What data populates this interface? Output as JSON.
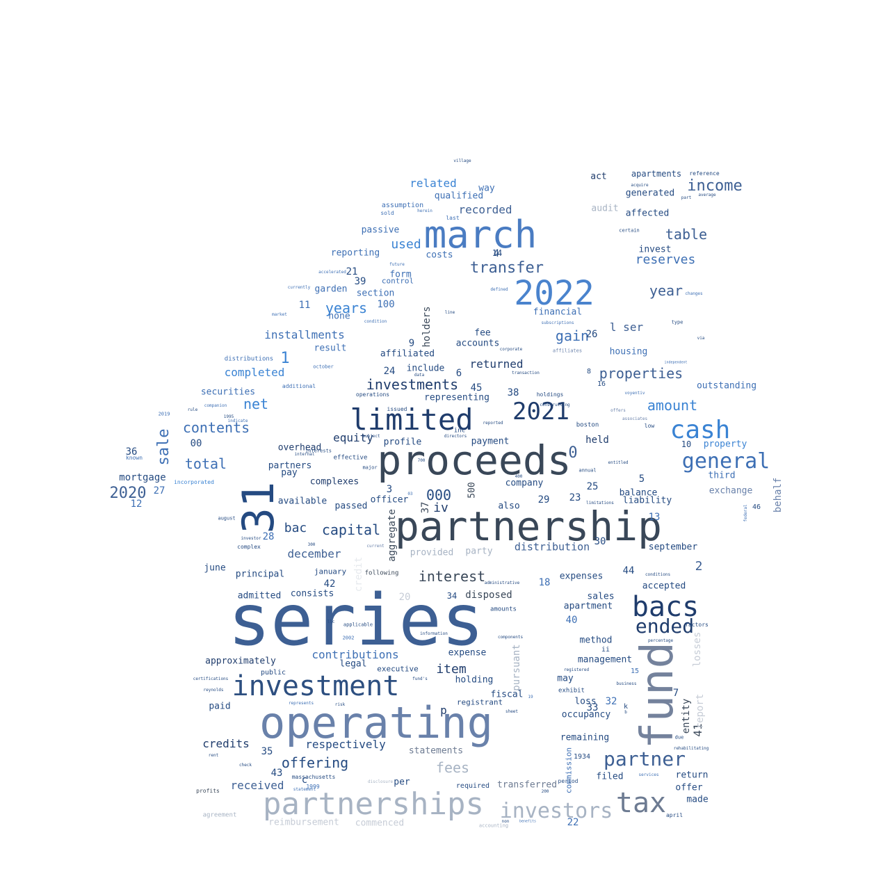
{
  "words": [
    {
      "text": "series",
      "color": "#3d5f93"
    },
    {
      "text": "partnership",
      "color": "#394758"
    },
    {
      "text": "proceeds",
      "color": "#394758"
    },
    {
      "text": "operating",
      "color": "#6981aa"
    },
    {
      "text": "31",
      "color": "#244a81"
    },
    {
      "text": "march",
      "color": "#4a7cc2"
    },
    {
      "text": "partnerships",
      "color": "#a7b3c3"
    },
    {
      "text": "fund",
      "color": "#74829c"
    },
    {
      "text": "limited",
      "color": "#1f3c6c"
    },
    {
      "text": "investment",
      "color": "#2d4f80"
    },
    {
      "text": "2022",
      "color": "#4a83cd"
    },
    {
      "text": "cash",
      "color": "#3a83d3"
    },
    {
      "text": "bacs",
      "color": "#1f3c6c"
    },
    {
      "text": "tax",
      "color": "#6d7b92"
    },
    {
      "text": "2021",
      "color": "#1f3c6c"
    },
    {
      "text": "investors",
      "color": "#a7b3c3"
    },
    {
      "text": "partner",
      "color": "#3d5f93"
    },
    {
      "text": "general",
      "color": "#3d6fb4"
    },
    {
      "text": "ended",
      "color": "#1f3c6c"
    },
    {
      "text": "income",
      "color": "#3d5f93"
    },
    {
      "text": "sale",
      "color": "#3d6fb4"
    },
    {
      "text": "2020",
      "color": "#3d5f93"
    },
    {
      "text": "transfer",
      "color": "#3d5f93"
    },
    {
      "text": "interest",
      "color": "#394758"
    },
    {
      "text": "capital",
      "color": "#244a81"
    },
    {
      "text": "investments",
      "color": "#1f3c6c"
    },
    {
      "text": "properties",
      "color": "#3d5f93"
    },
    {
      "text": "offering",
      "color": "#244a81"
    },
    {
      "text": "years",
      "color": "#3a83d3"
    },
    {
      "text": "net",
      "color": "#3a83d3"
    },
    {
      "text": "table",
      "color": "#3d5f93"
    },
    {
      "text": "amount",
      "color": "#3a83d3"
    },
    {
      "text": "fees",
      "color": "#a7b3c3"
    },
    {
      "text": "gain",
      "color": "#3d6fb4"
    },
    {
      "text": "contents",
      "color": "#3d6fb4"
    },
    {
      "text": "total",
      "color": "#3d6fb4"
    },
    {
      "text": "year",
      "color": "#3d5f93"
    },
    {
      "text": "reserves",
      "color": "#3d6fb4"
    },
    {
      "text": "used",
      "color": "#3a83d3"
    },
    {
      "text": "recorded",
      "color": "#3d5f93"
    },
    {
      "text": "completed",
      "color": "#3a83d3"
    },
    {
      "text": "installments",
      "color": "#3d6fb4"
    },
    {
      "text": "related",
      "color": "#3a83d3"
    },
    {
      "text": "1",
      "color": "#3a83d3"
    },
    {
      "text": "000",
      "color": "#244a81"
    },
    {
      "text": "bac",
      "color": "#244a81"
    },
    {
      "text": "december",
      "color": "#3d5f93"
    },
    {
      "text": "received",
      "color": "#3d5f93"
    },
    {
      "text": "credits",
      "color": "#1f3c6c"
    },
    {
      "text": "returned",
      "color": "#1f3c6c"
    },
    {
      "text": "respectively",
      "color": "#244a81"
    },
    {
      "text": "contributions",
      "color": "#3d6fb4"
    },
    {
      "text": "item",
      "color": "#1f3c6c"
    },
    {
      "text": "disposed",
      "color": "#394758"
    },
    {
      "text": "equity",
      "color": "#1f3c6c"
    },
    {
      "text": "2",
      "color": "#3d5f93"
    },
    {
      "text": "0",
      "color": "#3d5f93"
    },
    {
      "text": "41",
      "color": "#394758"
    },
    {
      "text": "l ser",
      "color": "#3d5f93"
    },
    {
      "text": "distribution",
      "color": "#3d5f93"
    },
    {
      "text": "holders",
      "color": "#394758"
    },
    {
      "text": "aggregate",
      "color": "#394758"
    },
    {
      "text": "credit",
      "color": "#e6e9ed"
    },
    {
      "text": "losses",
      "color": "#c6ccd6"
    },
    {
      "text": "report",
      "color": "#c6ccd6"
    },
    {
      "text": "pursuant",
      "color": "#a7b3c3"
    },
    {
      "text": "behalf",
      "color": "#6981aa"
    },
    {
      "text": "entity",
      "color": "#394758"
    },
    {
      "text": "commission",
      "color": "#3d6fb4"
    },
    {
      "text": "500",
      "color": "#394758"
    },
    {
      "text": "37",
      "color": "#394758"
    },
    {
      "text": "iv",
      "color": "#1f3c6c"
    },
    {
      "text": "p",
      "color": "#1f3c6c"
    },
    {
      "text": "held",
      "color": "#1f3c6c"
    },
    {
      "text": "mortgage",
      "color": "#244a81"
    },
    {
      "text": "securities",
      "color": "#3d6fb4"
    },
    {
      "text": "complexes",
      "color": "#1f3c6c"
    },
    {
      "text": "overhead",
      "color": "#1f3c6c"
    },
    {
      "text": "approximately",
      "color": "#1f3c6c"
    },
    {
      "text": "principal",
      "color": "#244a81"
    },
    {
      "text": "reimbursement",
      "color": "#c6ccd6"
    },
    {
      "text": "commenced",
      "color": "#c6ccd6"
    },
    {
      "text": "statements",
      "color": "#6d7b92"
    },
    {
      "text": "transferred",
      "color": "#6d7b92"
    },
    {
      "text": "exchange",
      "color": "#6981aa"
    },
    {
      "text": "outstanding",
      "color": "#3d6fb4"
    },
    {
      "text": "housing",
      "color": "#3d6fb4"
    },
    {
      "text": "financial",
      "color": "#3d6fb4"
    },
    {
      "text": "property",
      "color": "#3a83d3"
    },
    {
      "text": "third",
      "color": "#3d6fb4"
    },
    {
      "text": "liability",
      "color": "#244a81"
    },
    {
      "text": "balance",
      "color": "#244a81"
    },
    {
      "text": "september",
      "color": "#244a81"
    },
    {
      "text": "expenses",
      "color": "#244a81"
    },
    {
      "text": "accepted",
      "color": "#244a81"
    },
    {
      "text": "sales",
      "color": "#244a81"
    },
    {
      "text": "apartment",
      "color": "#244a81"
    },
    {
      "text": "method",
      "color": "#244a81"
    },
    {
      "text": "management",
      "color": "#244a81"
    },
    {
      "text": "remaining",
      "color": "#244a81"
    },
    {
      "text": "occupancy",
      "color": "#244a81"
    },
    {
      "text": "loss",
      "color": "#244a81"
    },
    {
      "text": "filed",
      "color": "#244a81"
    },
    {
      "text": "return",
      "color": "#244a81"
    },
    {
      "text": "offer",
      "color": "#244a81"
    },
    {
      "text": "made",
      "color": "#244a81"
    },
    {
      "text": "expense",
      "color": "#244a81"
    },
    {
      "text": "holding",
      "color": "#244a81"
    },
    {
      "text": "fiscal",
      "color": "#244a81"
    },
    {
      "text": "registrant",
      "color": "#244a81"
    },
    {
      "text": "legal",
      "color": "#244a81"
    },
    {
      "text": "executive",
      "color": "#244a81"
    },
    {
      "text": "paid",
      "color": "#244a81"
    },
    {
      "text": "public",
      "color": "#244a81"
    },
    {
      "text": "per",
      "color": "#244a81"
    },
    {
      "text": "required",
      "color": "#244a81"
    },
    {
      "text": "admitted",
      "color": "#244a81"
    },
    {
      "text": "consists",
      "color": "#244a81"
    },
    {
      "text": "january",
      "color": "#244a81"
    },
    {
      "text": "june",
      "color": "#244a81"
    },
    {
      "text": "available",
      "color": "#244a81"
    },
    {
      "text": "passed",
      "color": "#244a81"
    },
    {
      "text": "officer",
      "color": "#244a81"
    },
    {
      "text": "partners",
      "color": "#244a81"
    },
    {
      "text": "pay",
      "color": "#244a81"
    },
    {
      "text": "profile",
      "color": "#244a81"
    },
    {
      "text": "payment",
      "color": "#244a81"
    },
    {
      "text": "company",
      "color": "#244a81"
    },
    {
      "text": "also",
      "color": "#244a81"
    },
    {
      "text": "provided",
      "color": "#a7b3c3"
    },
    {
      "text": "party",
      "color": "#a7b3c3"
    },
    {
      "text": "representing",
      "color": "#244a81"
    },
    {
      "text": "include",
      "color": "#244a81"
    },
    {
      "text": "affiliated",
      "color": "#244a81"
    },
    {
      "text": "fee",
      "color": "#244a81"
    },
    {
      "text": "accounts",
      "color": "#244a81"
    },
    {
      "text": "result",
      "color": "#3d6fb4"
    },
    {
      "text": "none",
      "color": "#3d6fb4"
    },
    {
      "text": "garden",
      "color": "#3d6fb4"
    },
    {
      "text": "section",
      "color": "#3d6fb4"
    },
    {
      "text": "control",
      "color": "#3d6fb4"
    },
    {
      "text": "form",
      "color": "#3d6fb4"
    },
    {
      "text": "reporting",
      "color": "#3d6fb4"
    },
    {
      "text": "passive",
      "color": "#3d6fb4"
    },
    {
      "text": "costs",
      "color": "#3d6fb4"
    },
    {
      "text": "qualified",
      "color": "#3d6fb4"
    },
    {
      "text": "way",
      "color": "#3d6fb4"
    },
    {
      "text": "assumption",
      "color": "#3d6fb4"
    },
    {
      "text": "sold",
      "color": "#3d6fb4"
    },
    {
      "text": "last",
      "color": "#3d6fb4"
    },
    {
      "text": "act",
      "color": "#1f3c6c"
    },
    {
      "text": "apartments",
      "color": "#244a81"
    },
    {
      "text": "generated",
      "color": "#244a81"
    },
    {
      "text": "affected",
      "color": "#244a81"
    },
    {
      "text": "audit",
      "color": "#a7b3c3"
    },
    {
      "text": "invest",
      "color": "#244a81"
    },
    {
      "text": "may",
      "color": "#244a81"
    },
    {
      "text": "exhibit",
      "color": "#244a81"
    },
    {
      "text": "incorporated",
      "color": "#3a83d3"
    },
    {
      "text": "distributions",
      "color": "#3d6fb4"
    },
    {
      "text": "known",
      "color": "#3d6fb4"
    },
    {
      "text": "massachusetts",
      "color": "#244a81"
    },
    {
      "text": "agreement",
      "color": "#a7b3c3"
    },
    {
      "text": "profits",
      "color": "#394758"
    },
    {
      "text": "accounting",
      "color": "#a7b3c3"
    },
    {
      "text": "boston",
      "color": "#244a81"
    },
    {
      "text": "constructing",
      "color": "#244a81"
    },
    {
      "text": "operations",
      "color": "#244a81"
    },
    {
      "text": "issued",
      "color": "#244a81"
    },
    {
      "text": "holdings",
      "color": "#244a81"
    },
    {
      "text": "amounts",
      "color": "#244a81"
    },
    {
      "text": "complex",
      "color": "#244a81"
    },
    {
      "text": "following",
      "color": "#394758"
    },
    {
      "text": "interests",
      "color": "#244a81"
    },
    {
      "text": "effective",
      "color": "#244a81"
    },
    {
      "text": "major",
      "color": "#244a81"
    },
    {
      "text": "internal",
      "color": "#244a81"
    },
    {
      "text": "investor",
      "color": "#244a81"
    },
    {
      "text": "applicable",
      "color": "#244a81"
    },
    {
      "text": "information",
      "color": "#244a81"
    },
    {
      "text": "components",
      "color": "#244a81"
    },
    {
      "text": "administrative",
      "color": "#244a81"
    },
    {
      "text": "annual",
      "color": "#244a81"
    },
    {
      "text": "entitled",
      "color": "#244a81"
    },
    {
      "text": "limitations",
      "color": "#244a81"
    },
    {
      "text": "business",
      "color": "#244a81"
    },
    {
      "text": "registered",
      "color": "#244a81"
    },
    {
      "text": "services",
      "color": "#3d6fb4"
    },
    {
      "text": "april",
      "color": "#244a81"
    },
    {
      "text": "benefits",
      "color": "#3d6fb4"
    },
    {
      "text": "non",
      "color": "#244a81"
    },
    {
      "text": "period",
      "color": "#244a81"
    },
    {
      "text": "rehabilitating",
      "color": "#244a81"
    },
    {
      "text": "percentage",
      "color": "#244a81"
    },
    {
      "text": "voyentiv",
      "color": "#3d6fb4"
    },
    {
      "text": "low",
      "color": "#244a81"
    },
    {
      "text": "associates",
      "color": "#6981aa"
    },
    {
      "text": "offers",
      "color": "#6981aa"
    },
    {
      "text": "additional",
      "color": "#3d6fb4"
    },
    {
      "text": "october",
      "color": "#3d6fb4"
    },
    {
      "text": "market",
      "color": "#3d6fb4"
    },
    {
      "text": "subscriptions",
      "color": "#3d6fb4"
    },
    {
      "text": "corporate",
      "color": "#244a81"
    },
    {
      "text": "affiliates",
      "color": "#6981aa"
    },
    {
      "text": "reference",
      "color": "#244a81"
    },
    {
      "text": "acquire",
      "color": "#244a81"
    },
    {
      "text": "average",
      "color": "#244a81"
    },
    {
      "text": "part",
      "color": "#244a81"
    },
    {
      "text": "certain",
      "color": "#244a81"
    },
    {
      "text": "changes",
      "color": "#3d6fb4"
    },
    {
      "text": "type",
      "color": "#244a81"
    },
    {
      "text": "via",
      "color": "#244a81"
    },
    {
      "text": "defined",
      "color": "#3d6fb4"
    },
    {
      "text": "accelerated",
      "color": "#3d6fb4"
    },
    {
      "text": "future",
      "color": "#3d6fb4"
    },
    {
      "text": "currently",
      "color": "#3d6fb4"
    },
    {
      "text": "condition",
      "color": "#3d6fb4"
    },
    {
      "text": "line",
      "color": "#244a81"
    },
    {
      "text": "transaction",
      "color": "#244a81"
    },
    {
      "text": "data",
      "color": "#244a81"
    },
    {
      "text": "reported",
      "color": "#244a81"
    },
    {
      "text": "directors",
      "color": "#244a81"
    },
    {
      "text": "subject",
      "color": "#244a81"
    },
    {
      "text": "rule",
      "color": "#244a81"
    },
    {
      "text": "companion",
      "color": "#3d6fb4"
    },
    {
      "text": "indicate",
      "color": "#3d6fb4"
    },
    {
      "text": "current",
      "color": "#6981aa"
    },
    {
      "text": "august",
      "color": "#244a81"
    },
    {
      "text": "federal",
      "color": "#3d6fb4"
    },
    {
      "text": "village",
      "color": "#244a81"
    },
    {
      "text": "herein",
      "color": "#3d6fb4"
    },
    {
      "text": "independent",
      "color": "#3d6fb4"
    },
    {
      "text": "conditions",
      "color": "#244a81"
    },
    {
      "text": "certifications",
      "color": "#244a81"
    },
    {
      "text": "reynolds",
      "color": "#244a81"
    },
    {
      "text": "represents",
      "color": "#3d6fb4"
    },
    {
      "text": "risk",
      "color": "#244a81"
    },
    {
      "text": "fund's",
      "color": "#244a81"
    },
    {
      "text": "sheet",
      "color": "#244a81"
    },
    {
      "text": "disclosure",
      "color": "#a7b3c3"
    },
    {
      "text": "statement",
      "color": "#3d6fb4"
    },
    {
      "text": "rent",
      "color": "#244a81"
    },
    {
      "text": "check",
      "color": "#244a81"
    },
    {
      "text": "factors",
      "color": "#244a81"
    },
    {
      "text": "llc",
      "color": "#244a81"
    },
    {
      "text": "due",
      "color": "#244a81"
    },
    {
      "text": "1934",
      "color": "#244a81"
    },
    {
      "text": "ii",
      "color": "#244a81"
    },
    {
      "text": "k",
      "color": "#244a81"
    },
    {
      "text": "b",
      "color": "#244a81"
    },
    {
      "text": "inc",
      "color": "#244a81"
    },
    {
      "text": "c",
      "color": "#244a81"
    },
    {
      "text": "00",
      "color": "#244a81"
    },
    {
      "text": "100",
      "color": "#3d6fb4"
    },
    {
      "text": "3",
      "color": "#244a81"
    },
    {
      "text": "4",
      "color": "#244a81"
    },
    {
      "text": "5",
      "color": "#244a81"
    },
    {
      "text": "6",
      "color": "#244a81"
    },
    {
      "text": "7",
      "color": "#244a81"
    },
    {
      "text": "8",
      "color": "#244a81"
    },
    {
      "text": "9",
      "color": "#244a81"
    },
    {
      "text": "10",
      "color": "#244a81"
    },
    {
      "text": "11",
      "color": "#3d6fb4"
    },
    {
      "text": "12",
      "color": "#3d6fb4"
    },
    {
      "text": "13",
      "color": "#3d6fb4"
    },
    {
      "text": "14",
      "color": "#244a81"
    },
    {
      "text": "15",
      "color": "#3d6fb4"
    },
    {
      "text": "16",
      "color": "#244a81"
    },
    {
      "text": "18",
      "color": "#3d6fb4"
    },
    {
      "text": "20",
      "color": "#c6ccd6"
    },
    {
      "text": "21",
      "color": "#244a81"
    },
    {
      "text": "22",
      "color": "#3d6fb4"
    },
    {
      "text": "23",
      "color": "#244a81"
    },
    {
      "text": "24",
      "color": "#244a81"
    },
    {
      "text": "25",
      "color": "#244a81"
    },
    {
      "text": "26",
      "color": "#244a81"
    },
    {
      "text": "27",
      "color": "#3d6fb4"
    },
    {
      "text": "28",
      "color": "#3d6fb4"
    },
    {
      "text": "29",
      "color": "#244a81"
    },
    {
      "text": "30",
      "color": "#244a81"
    },
    {
      "text": "32",
      "color": "#3d6fb4"
    },
    {
      "text": "33",
      "color": "#244a81"
    },
    {
      "text": "34",
      "color": "#244a81"
    },
    {
      "text": "35",
      "color": "#244a81"
    },
    {
      "text": "36",
      "color": "#244a81"
    },
    {
      "text": "38",
      "color": "#244a81"
    },
    {
      "text": "39",
      "color": "#244a81"
    },
    {
      "text": "40",
      "color": "#3d6fb4"
    },
    {
      "text": "42",
      "color": "#244a81"
    },
    {
      "text": "43",
      "color": "#244a81"
    },
    {
      "text": "44",
      "color": "#244a81"
    },
    {
      "text": "45",
      "color": "#244a81"
    },
    {
      "text": "46",
      "color": "#244a81"
    },
    {
      "text": "2002",
      "color": "#3d6fb4"
    },
    {
      "text": "2019",
      "color": "#3d6fb4"
    },
    {
      "text": "400",
      "color": "#244a81"
    },
    {
      "text": "200",
      "color": "#244a81"
    },
    {
      "text": "300",
      "color": "#244a81"
    },
    {
      "text": "1995",
      "color": "#244a81"
    },
    {
      "text": "1999",
      "color": "#3d6fb4"
    },
    {
      "text": "19",
      "color": "#3d6fb4"
    },
    {
      "text": "700",
      "color": "#244a81"
    },
    {
      "text": "03",
      "color": "#3d6fb4"
    },
    {
      "text": "04",
      "color": "#244a81"
    }
  ]
}
